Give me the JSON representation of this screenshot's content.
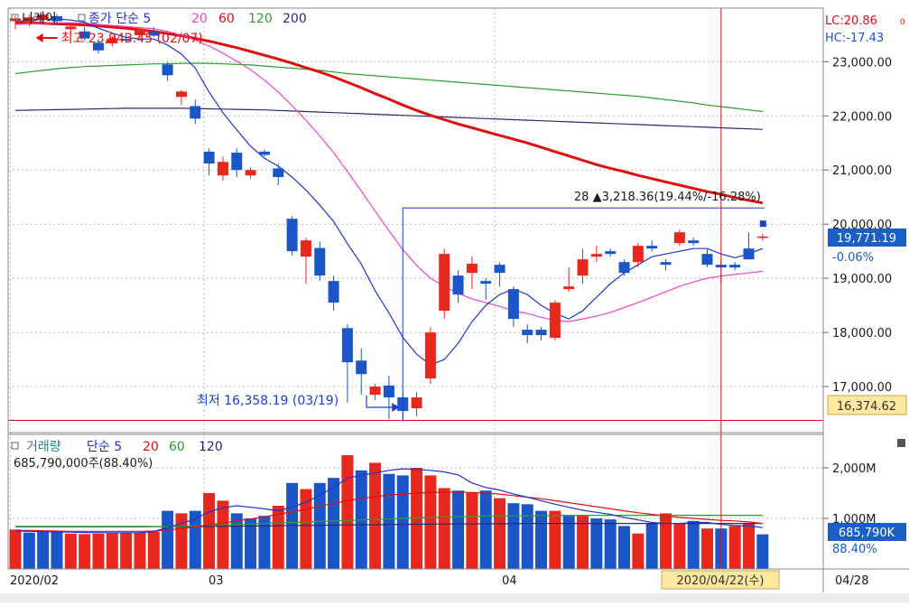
{
  "colors": {
    "up": "#e8281e",
    "down": "#1a56c8",
    "ma5": "#2233cc",
    "ma20": "#ee44cc",
    "ma60": "#e01010",
    "ma120": "#2aa02a",
    "ma200": "#2a2a70",
    "cursor": "#e01010",
    "price_box": "#1a5fc8",
    "low_box": "#ffe9a0"
  },
  "price_panel": {
    "legend": [
      {
        "text": "니케이",
        "color": "#1a1a1a",
        "marker": true
      },
      {
        "text": "종가 단순 5",
        "color": "#2233cc",
        "marker": true
      },
      {
        "text": "20",
        "color": "#ee44cc"
      },
      {
        "text": "60",
        "color": "#e01010"
      },
      {
        "text": "120",
        "color": "#2aa02a"
      },
      {
        "text": "200",
        "color": "#2a2a70"
      }
    ],
    "lc": "LC:20.86",
    "hc": "HC:-17.43",
    "lc_suffix": "0",
    "high_note": "최고 23,943.45 (02/07)",
    "low_note": "최저 16,358.19 (03/19)",
    "range_note": "28 ▲3,218.36(19.44%/-16.28%)",
    "current_price": "19,771.19",
    "current_change": "-0.06%",
    "low_label": "16,374.62",
    "yticks": [
      "23,000.00",
      "22,000.00",
      "21,000.00",
      "20,000.00",
      "19,000.00",
      "18,000.00",
      "17,000.00"
    ]
  },
  "volume_panel": {
    "legend": [
      {
        "text": "거래량",
        "color": "#208080",
        "marker": true
      },
      {
        "text": "단순 5",
        "color": "#2233cc"
      },
      {
        "text": "20",
        "color": "#e01010"
      },
      {
        "text": "60",
        "color": "#2aa02a"
      },
      {
        "text": "120",
        "color": "#2a2a70"
      }
    ],
    "subtitle": "685,790,000주(88.40%)",
    "current_volume": "685,790K",
    "current_pct": "88.40%",
    "yticks": [
      "2,000M",
      "1,000M"
    ]
  },
  "x_axis": {
    "labels": [
      "2020/02",
      "03",
      "04"
    ],
    "cursor_date": "2020/04/22(수)",
    "right_label": "04/28"
  },
  "chart_data": [
    {
      "type": "candlestick",
      "title": "니케이",
      "ylim": [
        16150,
        23990
      ],
      "candles": [
        {
          "o": 23750,
          "h": 23850,
          "l": 23600,
          "c": 23800
        },
        {
          "o": 23720,
          "h": 23870,
          "l": 23650,
          "c": 23820
        },
        {
          "o": 23780,
          "h": 23943.45,
          "l": 23700,
          "c": 23870
        },
        {
          "o": 23840,
          "h": 23880,
          "l": 23680,
          "c": 23750
        },
        {
          "o": 23600,
          "h": 23700,
          "l": 23480,
          "c": 23650
        },
        {
          "o": 23560,
          "h": 23640,
          "l": 23390,
          "c": 23430
        },
        {
          "o": 23350,
          "h": 23420,
          "l": 23150,
          "c": 23210
        },
        {
          "o": 23340,
          "h": 23480,
          "l": 23280,
          "c": 23430
        },
        {
          "o": 23420,
          "h": 23530,
          "l": 23360,
          "c": 23390
        },
        {
          "o": 23490,
          "h": 23620,
          "l": 23440,
          "c": 23600
        },
        {
          "o": 23550,
          "h": 23640,
          "l": 23460,
          "c": 23480
        },
        {
          "o": 22950,
          "h": 23000,
          "l": 22650,
          "c": 22750
        },
        {
          "o": 22350,
          "h": 22480,
          "l": 22200,
          "c": 22450
        },
        {
          "o": 22180,
          "h": 22300,
          "l": 21850,
          "c": 21950
        },
        {
          "o": 21340,
          "h": 21400,
          "l": 20900,
          "c": 21120
        },
        {
          "o": 20900,
          "h": 21250,
          "l": 20800,
          "c": 21150
        },
        {
          "o": 21320,
          "h": 21400,
          "l": 20870,
          "c": 21000
        },
        {
          "o": 20900,
          "h": 21050,
          "l": 20830,
          "c": 21000
        },
        {
          "o": 21340,
          "h": 21380,
          "l": 21250,
          "c": 21280
        },
        {
          "o": 21030,
          "h": 21120,
          "l": 20720,
          "c": 20870
        },
        {
          "o": 20100,
          "h": 20150,
          "l": 19420,
          "c": 19500
        },
        {
          "o": 19400,
          "h": 19750,
          "l": 18900,
          "c": 19700
        },
        {
          "o": 19560,
          "h": 19680,
          "l": 18950,
          "c": 19050
        },
        {
          "o": 18950,
          "h": 19050,
          "l": 18400,
          "c": 18550
        },
        {
          "o": 18080,
          "h": 18150,
          "l": 16700,
          "c": 17450
        },
        {
          "o": 17480,
          "h": 17700,
          "l": 16850,
          "c": 17230
        },
        {
          "o": 16850,
          "h": 17050,
          "l": 16750,
          "c": 17000
        },
        {
          "o": 17020,
          "h": 17200,
          "l": 16400,
          "c": 16800
        },
        {
          "o": 16800,
          "h": 16880,
          "l": 16358.19,
          "c": 16550
        },
        {
          "o": 16600,
          "h": 16900,
          "l": 16450,
          "c": 16800
        },
        {
          "o": 17150,
          "h": 18100,
          "l": 17050,
          "c": 18000
        },
        {
          "o": 18400,
          "h": 19550,
          "l": 18250,
          "c": 19450
        },
        {
          "o": 19050,
          "h": 19150,
          "l": 18550,
          "c": 18700
        },
        {
          "o": 19100,
          "h": 19400,
          "l": 18800,
          "c": 19270
        },
        {
          "o": 18950,
          "h": 19000,
          "l": 18600,
          "c": 18900
        },
        {
          "o": 19250,
          "h": 19300,
          "l": 18850,
          "c": 19100
        },
        {
          "o": 18800,
          "h": 18850,
          "l": 18100,
          "c": 18250
        },
        {
          "o": 18050,
          "h": 18150,
          "l": 17800,
          "c": 17950
        },
        {
          "o": 18050,
          "h": 18100,
          "l": 17850,
          "c": 17950
        },
        {
          "o": 17900,
          "h": 18600,
          "l": 17850,
          "c": 18550
        },
        {
          "o": 18800,
          "h": 19200,
          "l": 18750,
          "c": 18850
        },
        {
          "o": 19050,
          "h": 19550,
          "l": 18900,
          "c": 19350
        },
        {
          "o": 19400,
          "h": 19600,
          "l": 19300,
          "c": 19450
        },
        {
          "o": 19500,
          "h": 19550,
          "l": 19400,
          "c": 19450
        },
        {
          "o": 19300,
          "h": 19350,
          "l": 19050,
          "c": 19100
        },
        {
          "o": 19300,
          "h": 19650,
          "l": 19200,
          "c": 19600
        },
        {
          "o": 19600,
          "h": 19700,
          "l": 19500,
          "c": 19550
        },
        {
          "o": 19300,
          "h": 19350,
          "l": 19150,
          "c": 19250
        },
        {
          "o": 19650,
          "h": 19900,
          "l": 19600,
          "c": 19850
        },
        {
          "o": 19700,
          "h": 19750,
          "l": 19600,
          "c": 19650
        },
        {
          "o": 19450,
          "h": 19550,
          "l": 19200,
          "c": 19250
        },
        {
          "o": 19250,
          "h": 19350,
          "l": 18900,
          "c": 19200
        },
        {
          "o": 19250,
          "h": 19300,
          "l": 19150,
          "c": 19200
        },
        {
          "o": 19550,
          "h": 19850,
          "l": 19350,
          "c": 19350
        },
        {
          "o": 19760,
          "h": 19820,
          "l": 19700,
          "c": 19771.19
        }
      ],
      "ma5": [
        23750,
        23760,
        23780,
        23790,
        23770,
        23730,
        23620,
        23530,
        23450,
        23420,
        23420,
        23310,
        23140,
        22880,
        22440,
        22060,
        21740,
        21440,
        21220,
        21070,
        20870,
        20630,
        20350,
        20050,
        19640,
        19260,
        18770,
        18360,
        17910,
        17600,
        17400,
        17500,
        17800,
        18200,
        18500,
        18700,
        18800,
        18700,
        18500,
        18350,
        18250,
        18400,
        18650,
        18900,
        19100,
        19250,
        19400,
        19450,
        19500,
        19550,
        19550,
        19450,
        19380,
        19450,
        19550
      ],
      "ma20": [
        23690,
        23700,
        23710,
        23720,
        23720,
        23710,
        23690,
        23670,
        23650,
        23630,
        23610,
        23560,
        23490,
        23400,
        23290,
        23160,
        23010,
        22850,
        22660,
        22440,
        22190,
        21920,
        21630,
        21320,
        20970,
        20610,
        20240,
        19880,
        19530,
        19240,
        19000,
        18850,
        18720,
        18620,
        18550,
        18480,
        18400,
        18350,
        18280,
        18220,
        18200,
        18250,
        18300,
        18370,
        18460,
        18550,
        18650,
        18750,
        18850,
        18930,
        19000,
        19040,
        19070,
        19100,
        19130
      ],
      "ma60": [
        23720,
        23720,
        23710,
        23700,
        23690,
        23680,
        23660,
        23640,
        23620,
        23590,
        23560,
        23520,
        23480,
        23430,
        23380,
        23320,
        23260,
        23190,
        23120,
        23050,
        22970,
        22890,
        22810,
        22720,
        22620,
        22520,
        22410,
        22310,
        22200,
        22100,
        22010,
        21930,
        21850,
        21780,
        21710,
        21640,
        21570,
        21500,
        21420,
        21340,
        21260,
        21180,
        21100,
        21030,
        20970,
        20900,
        20840,
        20780,
        20720,
        20660,
        20600,
        20550,
        20490,
        20440,
        20390
      ],
      "ma120": [
        22780,
        22810,
        22840,
        22870,
        22890,
        22910,
        22920,
        22930,
        22940,
        22950,
        22960,
        22960,
        22970,
        22970,
        22970,
        22960,
        22950,
        22940,
        22920,
        22900,
        22880,
        22860,
        22840,
        22810,
        22780,
        22760,
        22740,
        22720,
        22700,
        22680,
        22660,
        22640,
        22620,
        22600,
        22580,
        22560,
        22540,
        22520,
        22500,
        22480,
        22460,
        22440,
        22420,
        22400,
        22380,
        22360,
        22330,
        22300,
        22270,
        22240,
        22200,
        22170,
        22140,
        22110,
        22080
      ],
      "ma200": [
        22100,
        22105,
        22110,
        22115,
        22120,
        22125,
        22130,
        22135,
        22140,
        22140,
        22140,
        22140,
        22140,
        22135,
        22130,
        22125,
        22120,
        22115,
        22110,
        22100,
        22090,
        22080,
        22070,
        22060,
        22050,
        22040,
        22030,
        22020,
        22010,
        22000,
        21990,
        21980,
        21970,
        21960,
        21950,
        21940,
        21930,
        21920,
        21910,
        21900,
        21890,
        21880,
        21870,
        21860,
        21850,
        21840,
        21830,
        21820,
        21810,
        21800,
        21790,
        21780,
        21770,
        21760,
        21750
      ]
    },
    {
      "type": "bar",
      "title": "거래량",
      "ylim": [
        0,
        2500
      ],
      "unit": "M",
      "up": [
        true,
        false,
        false,
        false,
        true,
        true,
        true,
        true,
        true,
        true,
        true,
        false,
        true,
        false,
        true,
        true,
        false,
        false,
        false,
        true,
        false,
        true,
        false,
        false,
        true,
        false,
        true,
        false,
        false,
        true,
        true,
        true,
        false,
        true,
        false,
        true,
        false,
        false,
        false,
        true,
        false,
        true,
        false,
        false,
        false,
        true,
        false,
        true,
        true,
        false,
        true,
        false,
        true,
        true,
        false
      ],
      "values": [
        780,
        720,
        760,
        740,
        700,
        690,
        700,
        710,
        720,
        720,
        740,
        1150,
        1100,
        1150,
        1500,
        1350,
        1100,
        1000,
        1050,
        1250,
        1700,
        1580,
        1700,
        1800,
        2250,
        1950,
        2100,
        1880,
        1850,
        2000,
        1850,
        1600,
        1550,
        1500,
        1550,
        1400,
        1300,
        1280,
        1150,
        1150,
        1050,
        1050,
        1000,
        980,
        850,
        700,
        900,
        1100,
        900,
        950,
        800,
        800,
        850,
        900,
        685.79
      ],
      "ma5": [
        750,
        745,
        740,
        730,
        728,
        722,
        720,
        718,
        718,
        720,
        740,
        820,
        900,
        990,
        1130,
        1210,
        1250,
        1220,
        1190,
        1150,
        1220,
        1320,
        1460,
        1610,
        1800,
        1850,
        1900,
        1950,
        1980,
        1970,
        1950,
        1920,
        1860,
        1700,
        1610,
        1560,
        1480,
        1420,
        1350,
        1280,
        1220,
        1160,
        1120,
        1080,
        1020,
        970,
        920,
        900,
        900,
        920,
        920,
        880,
        860,
        850,
        820
      ],
      "ma20": [
        760,
        760,
        755,
        750,
        745,
        745,
        745,
        745,
        745,
        745,
        750,
        770,
        800,
        830,
        870,
        910,
        950,
        990,
        1030,
        1080,
        1130,
        1180,
        1240,
        1300,
        1350,
        1390,
        1430,
        1460,
        1480,
        1500,
        1510,
        1520,
        1520,
        1510,
        1500,
        1480,
        1450,
        1420,
        1390,
        1350,
        1310,
        1270,
        1230,
        1190,
        1150,
        1110,
        1080,
        1050,
        1020,
        1000,
        980,
        960,
        950,
        930,
        900
      ],
      "ma60": [
        830,
        830,
        830,
        830,
        830,
        830,
        830,
        830,
        830,
        830,
        835,
        840,
        845,
        850,
        860,
        870,
        880,
        890,
        900,
        910,
        920,
        930,
        940,
        950,
        960,
        970,
        980,
        990,
        1000,
        1010,
        1020,
        1030,
        1035,
        1040,
        1045,
        1050,
        1050,
        1050,
        1055,
        1055,
        1060,
        1060,
        1060,
        1060,
        1060,
        1060,
        1060,
        1060,
        1060,
        1060,
        1060,
        1060,
        1060,
        1060,
        1060
      ],
      "ma120": [
        840,
        840,
        840,
        840,
        840,
        840,
        840,
        840,
        840,
        840,
        840,
        840,
        840,
        840,
        840,
        845,
        845,
        850,
        850,
        855,
        860,
        860,
        865,
        870,
        870,
        875,
        875,
        880,
        880,
        885,
        885,
        890,
        890,
        890,
        895,
        895,
        895,
        900,
        900,
        900,
        900,
        900,
        900,
        900,
        900,
        900,
        900,
        900,
        900,
        900,
        900,
        900,
        900,
        900,
        900
      ]
    }
  ]
}
